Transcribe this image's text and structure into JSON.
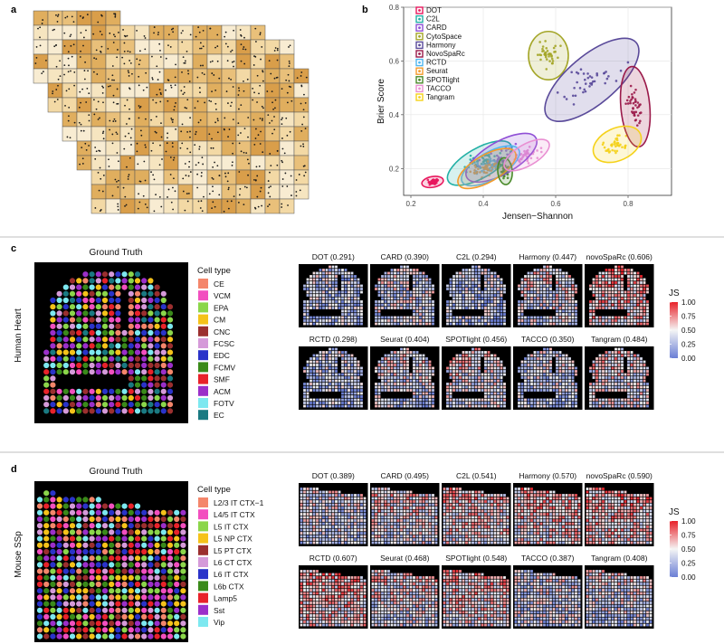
{
  "panels": {
    "a": "a",
    "b": "b",
    "c": "c",
    "d": "d"
  },
  "chart_data": [
    {
      "type": "scatter",
      "panel": "b",
      "xlabel": "Jensen−Shannon",
      "ylabel": "Brier Score",
      "xlim": [
        0.18,
        0.92
      ],
      "ylim": [
        0.1,
        0.8
      ],
      "x_ticks": [
        "0.2",
        "0.4",
        "0.6",
        "0.8"
      ],
      "y_ticks": [
        "0.2",
        "0.4",
        "0.6",
        "0.8"
      ],
      "legend_placement": "top-left",
      "series": [
        {
          "name": "DOT",
          "color": "#e8175d",
          "x": 0.26,
          "y": 0.15,
          "sx": 0.03,
          "sy": 0.02,
          "rot": 10
        },
        {
          "name": "C2L",
          "color": "#23b0a6",
          "x": 0.39,
          "y": 0.22,
          "sx": 0.1,
          "sy": 0.055,
          "rot": 30
        },
        {
          "name": "CARD",
          "color": "#8f4fd6",
          "x": 0.45,
          "y": 0.24,
          "sx": 0.11,
          "sy": 0.06,
          "rot": 30
        },
        {
          "name": "CytoSpace",
          "color": "#a4a628",
          "x": 0.58,
          "y": 0.62,
          "sx": 0.055,
          "sy": 0.09,
          "rot": 0
        },
        {
          "name": "Harmony",
          "color": "#5a4a9a",
          "x": 0.7,
          "y": 0.53,
          "sx": 0.16,
          "sy": 0.09,
          "rot": 40
        },
        {
          "name": "NovoSpaRc",
          "color": "#9b1a4a",
          "x": 0.82,
          "y": 0.43,
          "sx": 0.04,
          "sy": 0.15,
          "rot": 5
        },
        {
          "name": "RCTD",
          "color": "#4fb6f0",
          "x": 0.42,
          "y": 0.21,
          "sx": 0.09,
          "sy": 0.05,
          "rot": 30
        },
        {
          "name": "Seurat",
          "color": "#f49a2a",
          "x": 0.41,
          "y": 0.2,
          "sx": 0.09,
          "sy": 0.05,
          "rot": 30
        },
        {
          "name": "SPOTlight",
          "color": "#4a8a2a",
          "x": 0.46,
          "y": 0.19,
          "sx": 0.02,
          "sy": 0.05,
          "rot": 5
        },
        {
          "name": "TACCO",
          "color": "#e98fd2",
          "x": 0.52,
          "y": 0.25,
          "sx": 0.07,
          "sy": 0.04,
          "rot": 30
        },
        {
          "name": "Tangram",
          "color": "#f5d21a",
          "x": 0.77,
          "y": 0.29,
          "sx": 0.07,
          "sy": 0.06,
          "rot": 25
        }
      ]
    },
    {
      "type": "heatmap",
      "panel": "c",
      "row_label": "Human Heart",
      "ground_truth_title": "Ground Truth",
      "cell_type_title": "Cell type",
      "cell_types": [
        {
          "name": "CE",
          "color": "#f4866b"
        },
        {
          "name": "VCM",
          "color": "#f24fbf"
        },
        {
          "name": "EPA",
          "color": "#8bd64a"
        },
        {
          "name": "CM",
          "color": "#f5c21a"
        },
        {
          "name": "CNC",
          "color": "#9b2f2f"
        },
        {
          "name": "FCSC",
          "color": "#d59ad9"
        },
        {
          "name": "EDC",
          "color": "#2a33c9"
        },
        {
          "name": "FCMV",
          "color": "#3a8a1a"
        },
        {
          "name": "SMF",
          "color": "#e8222a"
        },
        {
          "name": "ACM",
          "color": "#9b2fc9"
        },
        {
          "name": "FOTV",
          "color": "#7de8f0"
        },
        {
          "name": "EC",
          "color": "#1a7a82"
        }
      ],
      "methods": [
        {
          "label": "DOT (0.291)",
          "js": 0.291
        },
        {
          "label": "CARD (0.390)",
          "js": 0.39
        },
        {
          "label": "C2L (0.294)",
          "js": 0.294
        },
        {
          "label": "Harmony (0.447)",
          "js": 0.447
        },
        {
          "label": "novoSpaRc (0.606)",
          "js": 0.606
        },
        {
          "label": "RCTD (0.298)",
          "js": 0.298
        },
        {
          "label": "Seurat (0.404)",
          "js": 0.404
        },
        {
          "label": "SPOTlight (0.456)",
          "js": 0.456
        },
        {
          "label": "TACCO (0.350)",
          "js": 0.35
        },
        {
          "label": "Tangram (0.484)",
          "js": 0.484
        }
      ],
      "colorbar_title": "JS",
      "colorbar_ticks": [
        "1.00",
        "0.75",
        "0.50",
        "0.25",
        "0.00"
      ]
    },
    {
      "type": "heatmap",
      "panel": "d",
      "row_label": "Mouse SSp",
      "ground_truth_title": "Ground Truth",
      "cell_type_title": "Cell type",
      "cell_types": [
        {
          "name": "L2/3 IT CTX−1",
          "color": "#f4866b"
        },
        {
          "name": "L4/5 IT CTX",
          "color": "#f24fbf"
        },
        {
          "name": "L5 IT CTX",
          "color": "#8bd64a"
        },
        {
          "name": "L5 NP CTX",
          "color": "#f5c21a"
        },
        {
          "name": "L5 PT CTX",
          "color": "#9b2f2f"
        },
        {
          "name": "L6 CT CTX",
          "color": "#d59ad9"
        },
        {
          "name": "L6 IT CTX",
          "color": "#2a33c9"
        },
        {
          "name": "L6b CTX",
          "color": "#3a8a1a"
        },
        {
          "name": "Lamp5",
          "color": "#e8222a"
        },
        {
          "name": "Sst",
          "color": "#9b2fc9"
        },
        {
          "name": "Vip",
          "color": "#7de8f0"
        }
      ],
      "methods": [
        {
          "label": "DOT (0.389)",
          "js": 0.389
        },
        {
          "label": "CARD (0.495)",
          "js": 0.495
        },
        {
          "label": "C2L (0.541)",
          "js": 0.541
        },
        {
          "label": "Harmony (0.570)",
          "js": 0.57
        },
        {
          "label": "novoSpaRc (0.590)",
          "js": 0.59
        },
        {
          "label": "RCTD (0.607)",
          "js": 0.607
        },
        {
          "label": "Seurat (0.468)",
          "js": 0.468
        },
        {
          "label": "SPOTlight (0.548)",
          "js": 0.548
        },
        {
          "label": "TACCO (0.387)",
          "js": 0.387
        },
        {
          "label": "Tangram (0.408)",
          "js": 0.408
        }
      ],
      "colorbar_title": "JS",
      "colorbar_ticks": [
        "1.00",
        "0.75",
        "0.50",
        "0.25",
        "0.00"
      ]
    }
  ]
}
